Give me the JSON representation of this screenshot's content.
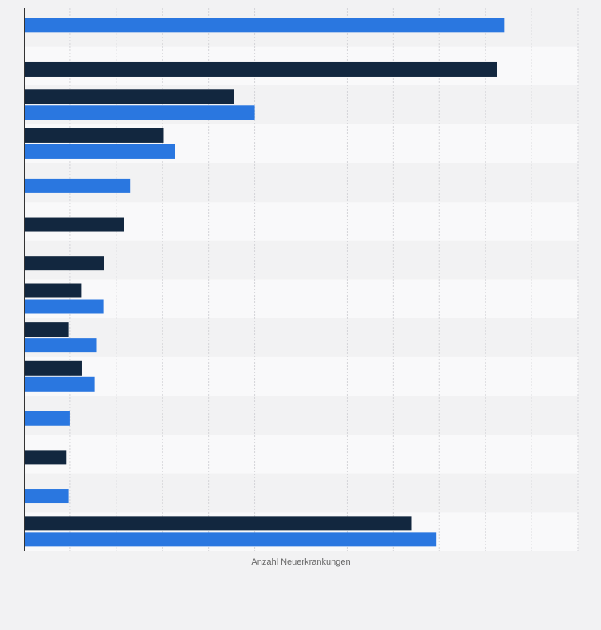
{
  "chart_data": {
    "type": "bar",
    "orientation": "horizontal",
    "xlabel": "Anzahl Neuerkrankungen",
    "ylabel": "",
    "xlim": [
      0,
      120
    ],
    "grid": true,
    "legend": "none",
    "categories": [
      "",
      "",
      "",
      "",
      "",
      "",
      "",
      "",
      "",
      "",
      "",
      "",
      "",
      ""
    ],
    "series": [
      {
        "color": "#2a77e0",
        "values": [
          [
            0,
            104
          ],
          [
            2,
            50
          ],
          [
            3,
            32.7
          ],
          [
            4,
            23
          ],
          [
            7,
            17.2
          ],
          [
            8,
            15.8
          ],
          [
            9,
            15.3
          ],
          [
            10,
            10
          ],
          [
            12,
            9.6
          ],
          [
            13,
            89.3
          ]
        ]
      },
      {
        "color": "#12273f",
        "values": [
          [
            1,
            102.5
          ],
          [
            2,
            45.5
          ],
          [
            3,
            30.3
          ],
          [
            5,
            21.7
          ],
          [
            6,
            17.4
          ],
          [
            7,
            12.5
          ],
          [
            8,
            9.6
          ],
          [
            9,
            12.6
          ],
          [
            11,
            9.2
          ],
          [
            13,
            84
          ]
        ]
      }
    ]
  }
}
